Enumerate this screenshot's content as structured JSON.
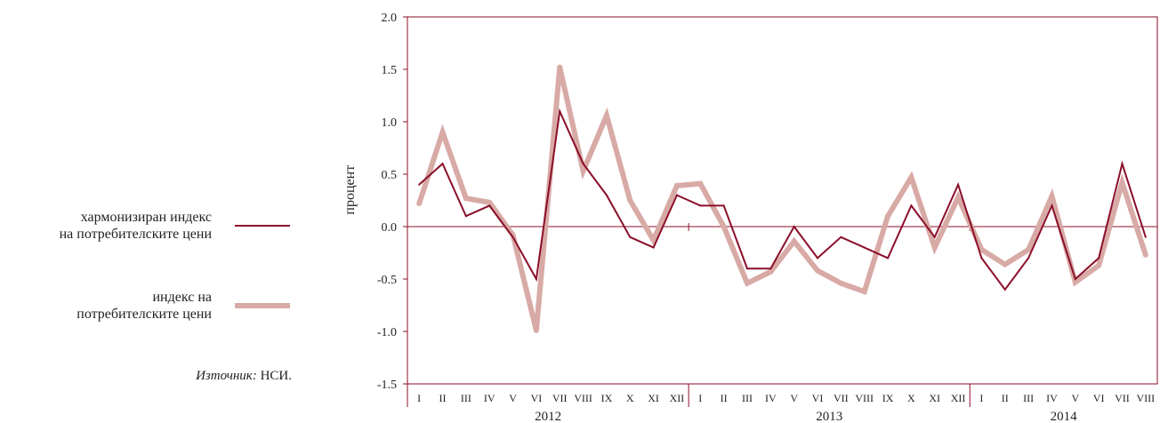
{
  "colors": {
    "hicp": "#8b0f2a",
    "cpi": "#d8aaa6",
    "axis": "#8b0f2a"
  },
  "legend": {
    "hicp_label_line1": "хармонизиран индекс",
    "hicp_label_line2": "на потребителските цени",
    "cpi_label_line1": "индекс на",
    "cpi_label_line2": "потребителските цени"
  },
  "source": {
    "prefix": "Източник:",
    "value": " НСИ."
  },
  "chart_data": {
    "type": "line",
    "ylabel": "процент",
    "ylim": [
      -1.5,
      2.0
    ],
    "yticks": [
      "2.0",
      "1.5",
      "1.0",
      "0.5",
      "0.0",
      "-0.5",
      "-1.0",
      "-1.5"
    ],
    "yticks_values": [
      2.0,
      1.5,
      1.0,
      0.5,
      0.0,
      -0.5,
      -1.0,
      -1.5
    ],
    "categories": [
      "I",
      "II",
      "III",
      "IV",
      "V",
      "VI",
      "VII",
      "VIII",
      "IX",
      "X",
      "XI",
      "XII",
      "I",
      "II",
      "III",
      "IV",
      "V",
      "VI",
      "VII",
      "VIII",
      "IX",
      "X",
      "XI",
      "XII",
      "I",
      "II",
      "III",
      "IV",
      "V",
      "VI",
      "VII",
      "VIII"
    ],
    "years": [
      "2012",
      "2013",
      "2014"
    ],
    "series": [
      {
        "name": "хармонизиран индекс на потребителските цени",
        "values": [
          0.4,
          0.6,
          0.1,
          0.2,
          -0.1,
          -0.5,
          1.1,
          0.6,
          0.3,
          -0.1,
          -0.2,
          0.3,
          0.2,
          0.2,
          -0.4,
          -0.4,
          0.0,
          -0.3,
          -0.1,
          -0.2,
          -0.3,
          0.2,
          -0.1,
          0.4,
          -0.3,
          -0.6,
          -0.3,
          0.2,
          -0.5,
          -0.3,
          0.6,
          -0.1
        ]
      },
      {
        "name": "индекс на потребителските цени",
        "values": [
          0.22,
          0.9,
          0.27,
          0.23,
          -0.08,
          -0.99,
          1.52,
          0.53,
          1.06,
          0.25,
          -0.13,
          0.39,
          0.41,
          0.0,
          -0.54,
          -0.43,
          -0.14,
          -0.42,
          -0.54,
          -0.62,
          0.1,
          0.47,
          -0.2,
          0.28,
          -0.22,
          -0.36,
          -0.22,
          0.29,
          -0.53,
          -0.37,
          0.42,
          -0.27
        ]
      }
    ]
  }
}
